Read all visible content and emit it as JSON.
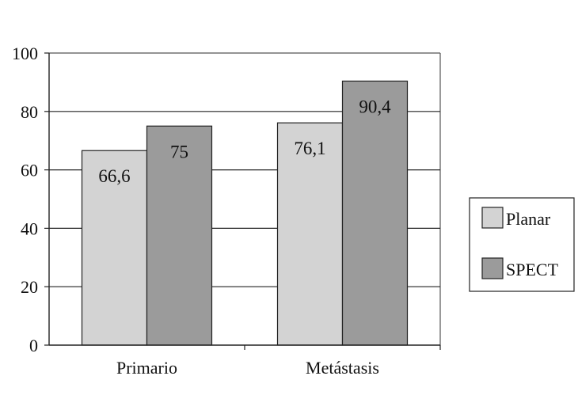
{
  "chart_data": {
    "type": "bar",
    "categories": [
      "Primario",
      "Metástasis"
    ],
    "series": [
      {
        "name": "Planar",
        "values": [
          66.6,
          76.1
        ],
        "labels": [
          "66,6",
          "76,1"
        ],
        "color": "#d3d3d3"
      },
      {
        "name": "SPECT",
        "values": [
          75,
          90.4
        ],
        "labels": [
          "75",
          "90,4"
        ],
        "color": "#9b9b9b"
      }
    ],
    "ylim": [
      0,
      100
    ],
    "yticks": [
      0,
      20,
      40,
      60,
      80,
      100
    ],
    "grid": true,
    "legend": "right",
    "title": "",
    "xlabel": "",
    "ylabel": ""
  }
}
